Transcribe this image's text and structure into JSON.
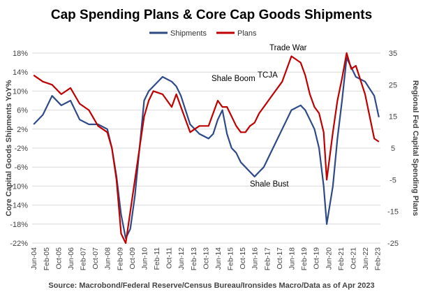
{
  "chart_data": {
    "type": "line",
    "title": "Cap Spending Plans & Core Cap Goods Shipments",
    "ylabel": "Core Capital Goods Shipments YoY%",
    "y2label": "Regional Fed Capital Spending Plans",
    "source": "Source: Macrobond/Federal Reserve/Census Bureau/Ironsides Macro/Data as of Apr 2023",
    "ylim": [
      -22,
      18
    ],
    "y2lim": [
      -25,
      35
    ],
    "yticks": [
      "18%",
      "14%",
      "10%",
      "6%",
      "2%",
      "-2%",
      "-6%",
      "-10%",
      "-14%",
      "-18%",
      "-22%"
    ],
    "y2ticks": [
      "35",
      "25",
      "15",
      "5",
      "-5",
      "-15",
      "-25"
    ],
    "xticks": [
      "Jun-04",
      "Feb-05",
      "Oct-05",
      "Jun-06",
      "Feb-07",
      "Oct-07",
      "Jun-08",
      "Feb-09",
      "Oct-09",
      "Jun-10",
      "Feb-11",
      "Oct-11",
      "Jun-12",
      "Feb-13",
      "Oct-13",
      "Jun-14",
      "Feb-15",
      "Oct-15",
      "Jun-16",
      "Feb-17",
      "Oct-17",
      "Jun-18",
      "Feb-19",
      "Oct-19",
      "Jun-20",
      "Feb-21",
      "Oct-21",
      "Jun-22",
      "Feb-23"
    ],
    "grid": true,
    "legend_position": "top-center",
    "annotations": [
      "Shale Boom",
      "TCJA",
      "Trade War",
      "Shale Bust"
    ],
    "series": [
      {
        "name": "Shipments",
        "axis": "left",
        "color": "#2E4A87",
        "x": [
          "2004-06",
          "2004-12",
          "2005-06",
          "2005-12",
          "2006-06",
          "2006-12",
          "2007-06",
          "2007-12",
          "2008-06",
          "2008-09",
          "2008-12",
          "2009-03",
          "2009-06",
          "2009-09",
          "2009-12",
          "2010-03",
          "2010-06",
          "2010-09",
          "2010-12",
          "2011-06",
          "2011-12",
          "2012-03",
          "2012-06",
          "2012-09",
          "2012-12",
          "2013-06",
          "2013-12",
          "2014-03",
          "2014-06",
          "2014-09",
          "2014-12",
          "2015-03",
          "2015-06",
          "2015-09",
          "2015-12",
          "2016-03",
          "2016-06",
          "2016-09",
          "2016-12",
          "2017-06",
          "2017-12",
          "2018-06",
          "2018-12",
          "2019-03",
          "2019-06",
          "2019-09",
          "2019-12",
          "2020-03",
          "2020-05",
          "2020-09",
          "2020-12",
          "2021-03",
          "2021-06",
          "2021-09",
          "2021-12",
          "2022-06",
          "2022-12",
          "2023-03"
        ],
        "values": [
          3,
          5,
          9,
          7,
          8,
          4,
          3,
          3,
          2,
          -2,
          -8,
          -16,
          -21,
          -19,
          -12,
          -2,
          8,
          10,
          11,
          13,
          12,
          11,
          9,
          6,
          3,
          1,
          0,
          1,
          4,
          6,
          1,
          -2,
          -3,
          -5,
          -6,
          -7,
          -8,
          -7,
          -6,
          -2,
          2,
          6,
          7,
          6,
          4,
          2,
          -2,
          -10,
          -18,
          -10,
          0,
          8,
          17,
          15,
          13,
          12,
          9,
          4.5
        ]
      },
      {
        "name": "Plans",
        "axis": "right",
        "color": "#C00000",
        "x": [
          "2004-06",
          "2004-12",
          "2005-06",
          "2005-12",
          "2006-06",
          "2006-12",
          "2007-06",
          "2007-12",
          "2008-06",
          "2008-09",
          "2008-12",
          "2009-03",
          "2009-06",
          "2009-09",
          "2009-12",
          "2010-03",
          "2010-06",
          "2010-09",
          "2010-12",
          "2011-06",
          "2011-12",
          "2012-03",
          "2012-06",
          "2012-09",
          "2012-12",
          "2013-06",
          "2013-12",
          "2014-03",
          "2014-06",
          "2014-09",
          "2014-12",
          "2015-03",
          "2015-06",
          "2015-09",
          "2015-12",
          "2016-03",
          "2016-06",
          "2016-09",
          "2016-12",
          "2017-06",
          "2017-12",
          "2018-06",
          "2018-12",
          "2019-03",
          "2019-06",
          "2019-09",
          "2019-12",
          "2020-03",
          "2020-05",
          "2020-09",
          "2020-12",
          "2021-03",
          "2021-06",
          "2021-09",
          "2021-12",
          "2022-06",
          "2022-12",
          "2023-03"
        ],
        "values": [
          28,
          26,
          25,
          22,
          24,
          19,
          17,
          12,
          10,
          5,
          -5,
          -22,
          -25,
          -15,
          -5,
          5,
          15,
          20,
          23,
          22,
          18,
          22,
          18,
          14,
          10,
          12,
          12,
          16,
          20,
          18,
          18,
          15,
          12,
          10,
          10,
          12,
          13,
          16,
          18,
          22,
          26,
          34,
          32,
          28,
          22,
          18,
          16,
          10,
          -5,
          10,
          20,
          27,
          35,
          30,
          31,
          22,
          8,
          7
        ]
      }
    ]
  }
}
